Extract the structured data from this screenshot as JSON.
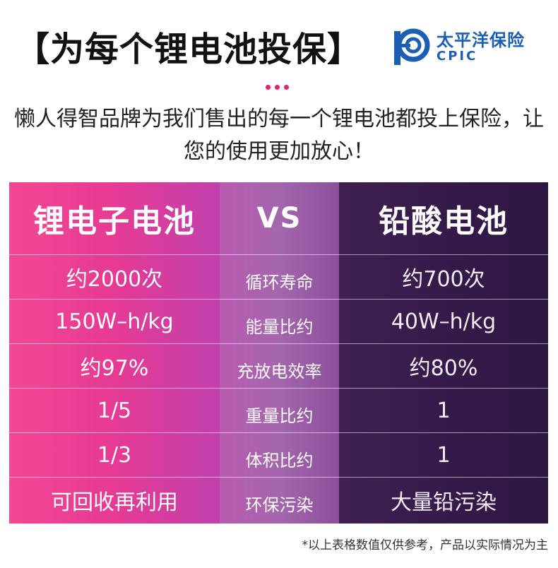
{
  "header": {
    "title": "【为每个锂电池投保】"
  },
  "logo": {
    "name_cn": "太平洋保险",
    "name_en": "CPIC",
    "brand_color": "#1a5fb4",
    "icon": "cpic-logo-icon"
  },
  "intro": {
    "text": "懒人得智品牌为我们售出的每一个锂电池都投上保险，让您的使用更加放心！"
  },
  "comparison": {
    "left_header": "锂电子电池",
    "mid_header": "VS",
    "right_header": "铅酸电池",
    "rows": [
      {
        "left": "约2000次",
        "metric": "循环寿命",
        "right": "约700次"
      },
      {
        "left": "150W–h/kg",
        "metric": "能量比约",
        "right": "40W–h/kg"
      },
      {
        "left": "约97%",
        "metric": "充放电效率",
        "right": "约80%"
      },
      {
        "left": "1/5",
        "metric": "重量比约",
        "right": "1"
      },
      {
        "left": "1/3",
        "metric": "体积比约",
        "right": "1"
      },
      {
        "left": "可回收再利用",
        "metric": "环保污染",
        "right": "大量铅污染"
      }
    ],
    "colors": {
      "left": "#e63a94",
      "mid": "#a466ac",
      "right": "#351a4a"
    }
  },
  "footnote": "*以上表格数值仅供参考，产品以实际情况为主"
}
